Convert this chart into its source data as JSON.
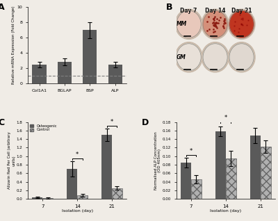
{
  "panel_A": {
    "categories": [
      "Col1A1",
      "BGLAP",
      "BSP",
      "ALP"
    ],
    "values": [
      2.45,
      2.85,
      6.95,
      2.45
    ],
    "errors": [
      0.35,
      0.45,
      1.05,
      0.35
    ],
    "bar_color": "#5a5a5a",
    "ylabel": "Relative mRNA Expression (Fold Change)",
    "ylim": [
      0,
      10
    ],
    "yticks": [
      0,
      2,
      4,
      6,
      8,
      10
    ],
    "dashed_line_y": 1,
    "label": "A"
  },
  "panel_B": {
    "label": "B",
    "col_labels": [
      "Day 7",
      "Day 14",
      "Day 21"
    ],
    "row_labels": [
      "MM",
      "GM"
    ],
    "bg_color": "#d8cfc8",
    "colors_MM": [
      "#e8c8bb",
      "#d4907a",
      "#c03520"
    ],
    "colors_GM": [
      "#e8e0d8",
      "#e4dcd4",
      "#e0d8d0"
    ],
    "dot_color": "#8b1a10"
  },
  "panel_C": {
    "days": [
      7,
      14,
      21
    ],
    "osteogenic": [
      0.03,
      0.7,
      1.5
    ],
    "control": [
      0.02,
      0.08,
      0.25
    ],
    "osteogenic_err": [
      0.015,
      0.18,
      0.15
    ],
    "control_err": [
      0.01,
      0.03,
      0.04
    ],
    "bar_color_osteo": "#5a5a5a",
    "bar_color_ctrl": "#b0b0b0",
    "hatch_ctrl": "xxx",
    "ylabel": "Alizarin Red Per Cell (arbitrary\nunits)",
    "xlabel": "Isolation (day)",
    "ylim": [
      0,
      1.8
    ],
    "yticks": [
      0.0,
      0.2,
      0.4,
      0.6,
      0.8,
      1.0,
      1.2,
      1.4,
      1.6,
      1.8
    ],
    "label": "C"
  },
  "panel_D": {
    "days": [
      7,
      14,
      21
    ],
    "osteogenic": [
      0.085,
      0.158,
      0.148
    ],
    "control": [
      0.046,
      0.095,
      0.122
    ],
    "osteogenic_err": [
      0.012,
      0.012,
      0.018
    ],
    "control_err": [
      0.01,
      0.018,
      0.015
    ],
    "bar_color_osteo": "#5a5a5a",
    "bar_color_ctrl": "#b0b0b0",
    "hatch_ctrl": "xxx",
    "ylabel": "Normalised ALP Concentration\n(OD 405nm)",
    "xlabel": "Isolation (day)",
    "ylim": [
      0,
      0.18
    ],
    "yticks": [
      0.0,
      0.02,
      0.04,
      0.06,
      0.08,
      0.1,
      0.12,
      0.14,
      0.16,
      0.18
    ],
    "label": "D"
  },
  "background_color": "#f0ece6",
  "text_color": "#222222"
}
